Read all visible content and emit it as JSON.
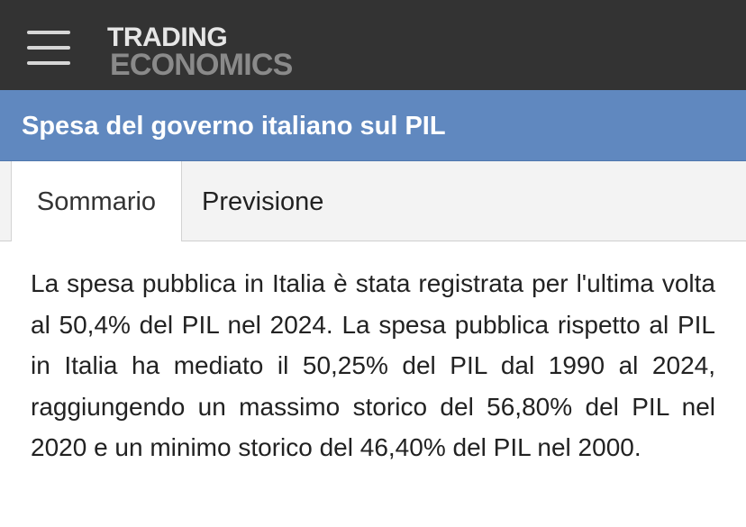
{
  "header": {
    "logo_line1": "TRADING",
    "logo_line2": "ECONOMICS"
  },
  "page_title": "Spesa del governo italiano sul PIL",
  "tabs": [
    {
      "label": "Sommario",
      "active": true
    },
    {
      "label": "Previsione",
      "active": false
    }
  ],
  "summary_text": "La spesa pubblica in Italia è stata registrata per l'ultima volta al 50,4% del PIL nel 2024. La spesa pubblica rispetto al PIL in Italia ha mediato il 50,25% del PIL dal 1990 al 2024, raggiungendo un massimo storico del 56,80% del PIL nel 2020 e un minimo storico del 46,40% del PIL nel 2000.",
  "colors": {
    "topbar": "#333333",
    "title_bar": "#6088bf",
    "tab_background": "#f3f3f3"
  },
  "icons": {
    "menu": "hamburger-menu-icon"
  }
}
